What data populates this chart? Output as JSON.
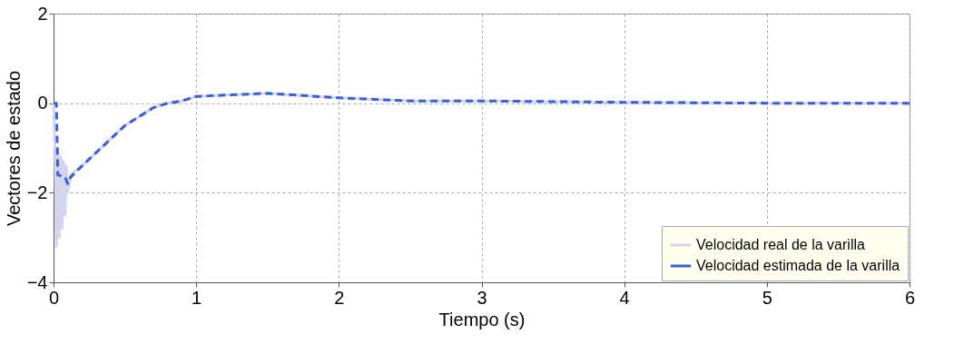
{
  "chart_data": {
    "type": "line",
    "xlabel": "Tiempo (s)",
    "ylabel": "Vectores de estado",
    "xlim": [
      0,
      6
    ],
    "ylim": [
      -4,
      2
    ],
    "xticks": [
      0,
      1,
      2,
      3,
      4,
      5,
      6
    ],
    "yticks": [
      -4,
      -2,
      0,
      2
    ],
    "grid": true,
    "legend": "bottom right",
    "series": [
      {
        "name": "Velocidad real de la varilla",
        "color": "#d4d4ee",
        "line_style": "solid",
        "x": [
          0,
          0.01,
          0.02,
          0.03,
          0.04,
          0.05,
          0.06,
          0.07,
          0.08,
          0.09,
          0.1,
          0.12,
          0.2,
          0.3,
          0.4,
          0.5,
          0.6,
          0.7,
          0.8,
          0.9,
          1.0,
          1.2,
          1.5,
          2,
          2.5,
          3,
          4,
          5,
          6
        ],
        "values": [
          0,
          -1.0,
          -3.2,
          -1.0,
          -3.0,
          -1.2,
          -2.8,
          -1.3,
          -2.5,
          -1.4,
          -2.0,
          -1.6,
          -1.4,
          -1.1,
          -0.8,
          -0.5,
          -0.3,
          -0.1,
          0.0,
          0.05,
          0.15,
          0.18,
          0.22,
          0.12,
          0.05,
          0.05,
          0.02,
          0.0,
          0.0
        ]
      },
      {
        "name": "Velocidad estimada de la varilla",
        "color": "#3a5fd8",
        "line_style": "dashed",
        "x": [
          0,
          0.02,
          0.03,
          0.08,
          0.1,
          0.12,
          0.2,
          0.3,
          0.4,
          0.5,
          0.6,
          0.7,
          0.8,
          0.9,
          1.0,
          1.2,
          1.5,
          2,
          2.5,
          3,
          4,
          5,
          6
        ],
        "values": [
          0,
          0,
          -1.6,
          -1.65,
          -1.8,
          -1.65,
          -1.4,
          -1.1,
          -0.8,
          -0.5,
          -0.3,
          -0.1,
          0.0,
          0.05,
          0.15,
          0.18,
          0.22,
          0.12,
          0.05,
          0.05,
          0.02,
          0.0,
          0.0
        ]
      }
    ]
  }
}
